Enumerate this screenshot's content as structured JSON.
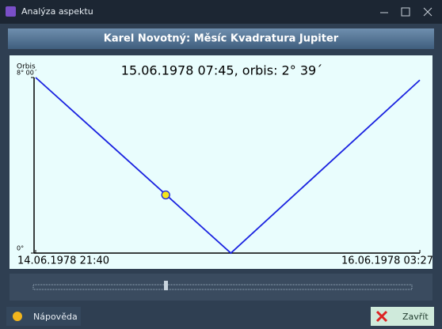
{
  "window": {
    "title": "Analýza aspektu",
    "header": "Karel Novotný: Měsíc Kvadratura Jupiter",
    "buttons": {
      "help": "Nápověda",
      "close": "Zavřít"
    }
  },
  "chart_data": {
    "type": "line",
    "title": "15.06.1978 07:45, orbis: 2° 39´",
    "y_label": "Orbis",
    "x": [
      "14.06.1978 21:40",
      "15.06.1978 12:48",
      "16.06.1978 03:27"
    ],
    "series": [
      {
        "color": "#1a22e0",
        "values": [
          480,
          0,
          473
        ]
      }
    ],
    "marker": {
      "x": "15.06.1978 07:45",
      "y": 159,
      "color": "#f5e61a"
    },
    "xlim": [
      "14.06.1978 21:40",
      "16.06.1978 03:27"
    ],
    "xticks": [
      "14.06.1978 21:40",
      "16.06.1978 03:27"
    ],
    "ylim": [
      0,
      480
    ],
    "yticks": [
      {
        "value": 0,
        "label": "0°"
      },
      {
        "value": 480,
        "label": "8° 00´"
      }
    ]
  }
}
